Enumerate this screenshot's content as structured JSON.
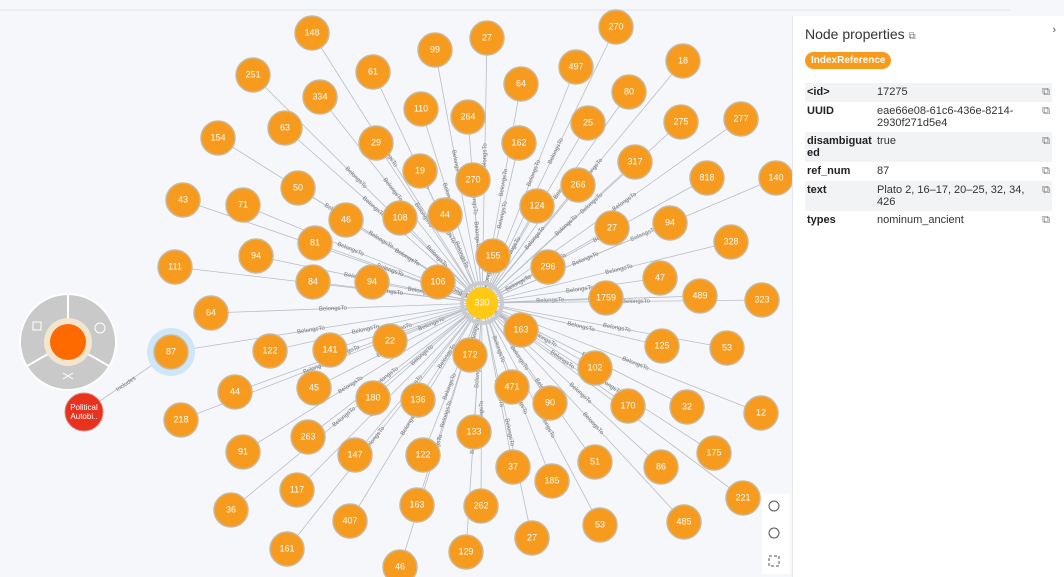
{
  "graph": {
    "center": "330",
    "edge_label": "BelongsTo",
    "nodes": [
      "148",
      "99",
      "27",
      "270",
      "251",
      "61",
      "64",
      "497",
      "18",
      "334",
      "110",
      "80",
      "63",
      "264",
      "25",
      "275",
      "277",
      "154",
      "29",
      "162",
      "317",
      "19",
      "270",
      "266",
      "818",
      "140",
      "50",
      "43",
      "71",
      "108",
      "44",
      "124",
      "27",
      "94",
      "46",
      "81",
      "328",
      "94",
      "111",
      "155",
      "296",
      "47",
      "84",
      "94",
      "106",
      "1759",
      "489",
      "323",
      "64",
      "163",
      "22",
      "141",
      "122",
      "125",
      "53",
      "87",
      "172",
      "102",
      "45",
      "44",
      "471",
      "180",
      "136",
      "90",
      "170",
      "32",
      "12",
      "218",
      "133",
      "263",
      "91",
      "147",
      "122",
      "175",
      "51",
      "86",
      "37",
      "185",
      "117",
      "221",
      "36",
      "407",
      "163",
      "262",
      "485",
      "53",
      "27",
      "161",
      "129",
      "46"
    ],
    "other_node_line1": "Political",
    "other_node_line2": "Autobi..",
    "other_edge_label": "Includes"
  },
  "panel": {
    "title": "Node properties",
    "badge": "IndexReference",
    "rows": [
      [
        "<id>",
        "17275"
      ],
      [
        "UUID",
        "eae66e08-61c6-436e-8214-2930f271d5e4"
      ],
      [
        "disambiguated",
        "true"
      ],
      [
        "ref_num",
        "87"
      ],
      [
        "text",
        "Plato 2, 16–17, 20–25, 32, 34, 426"
      ],
      [
        "types",
        "nominum_ancient"
      ]
    ]
  }
}
